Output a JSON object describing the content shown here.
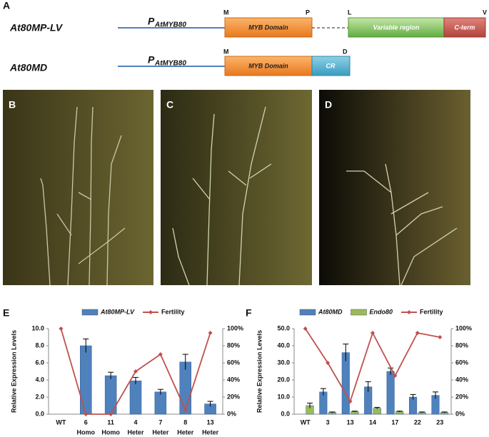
{
  "figure": {
    "panel_labels": [
      "A",
      "B",
      "C",
      "D",
      "E",
      "F"
    ],
    "constructs": [
      {
        "name": "At80MP-LV",
        "promoter": "P",
        "promoter_sub": "AtMYB80",
        "markers": [
          "M",
          "P",
          "L",
          "V"
        ],
        "domains": [
          "MYB Domain",
          "Variable region",
          "C-term"
        ]
      },
      {
        "name": "At80MD",
        "promoter": "P",
        "promoter_sub": "AtMYB80",
        "markers": [
          "M",
          "D"
        ],
        "domains": [
          "MYB Domain",
          "CR"
        ]
      }
    ]
  },
  "chart_data": [
    {
      "type": "bar_line",
      "y_label": "Relative Expression Levels",
      "categories": [
        "WT",
        "6",
        "11",
        "4",
        "7",
        "8",
        "13"
      ],
      "genotypes": [
        null,
        "Homo",
        "Homo",
        "Heter",
        "Heter",
        "Heter",
        "Heter"
      ],
      "series": [
        {
          "name": "At80MP-LV",
          "color": "#4f81bd",
          "values": [
            null,
            8.0,
            4.5,
            3.9,
            2.6,
            6.1,
            1.2
          ],
          "errors": [
            null,
            0.8,
            0.4,
            0.4,
            0.3,
            0.9,
            0.3
          ]
        },
        {
          "name": "Fertility",
          "color": "#c0504d",
          "axis": "y2",
          "values": [
            100,
            0,
            0,
            50,
            70,
            5,
            95
          ]
        }
      ],
      "ylim": [
        0,
        10
      ],
      "yticks": [
        {
          "value": 0,
          "label": "0.0"
        },
        {
          "value": 2,
          "label": "2.0"
        },
        {
          "value": 4,
          "label": "4.0"
        },
        {
          "value": 6,
          "label": "6.0"
        },
        {
          "value": 8,
          "label": "8.0"
        },
        {
          "value": 10,
          "label": "10.0"
        }
      ],
      "y2lim": [
        0,
        100
      ],
      "y2ticks": [
        {
          "value": 0,
          "label": "0%"
        },
        {
          "value": 20,
          "label": "20%"
        },
        {
          "value": 40,
          "label": "40%"
        },
        {
          "value": 60,
          "label": "60%"
        },
        {
          "value": 80,
          "label": "80%"
        },
        {
          "value": 100,
          "label": "100%"
        }
      ]
    },
    {
      "type": "bar_line",
      "y_label": "Relative Expression Levels",
      "categories": [
        "WT",
        "3",
        "13",
        "14",
        "17",
        "22",
        "23"
      ],
      "series": [
        {
          "name": "At80MD",
          "color": "#4f81bd",
          "values": [
            null,
            13,
            36,
            16,
            25,
            10,
            11
          ],
          "errors": [
            null,
            2,
            5,
            3,
            2,
            1.5,
            2
          ]
        },
        {
          "name": "Endo80",
          "color": "#9bbb59",
          "values": [
            5,
            1,
            1.5,
            3.5,
            1.5,
            1,
            1
          ],
          "errors": [
            1.5,
            0.3,
            0.3,
            0.5,
            0.3,
            0.3,
            0.3
          ]
        },
        {
          "name": "Fertility",
          "color": "#c0504d",
          "axis": "y2",
          "values": [
            100,
            60,
            15,
            95,
            45,
            95,
            90
          ]
        }
      ],
      "ylim": [
        0,
        50
      ],
      "yticks": [
        {
          "value": 0,
          "label": "0.0"
        },
        {
          "value": 10,
          "label": "10.0"
        },
        {
          "value": 20,
          "label": "20.0"
        },
        {
          "value": 30,
          "label": "30.0"
        },
        {
          "value": 40,
          "label": "40.0"
        },
        {
          "value": 50,
          "label": "50.0"
        }
      ],
      "y2lim": [
        0,
        100
      ],
      "y2ticks": [
        {
          "value": 0,
          "label": "0%"
        },
        {
          "value": 20,
          "label": "20%"
        },
        {
          "value": 40,
          "label": "40%"
        },
        {
          "value": 60,
          "label": "60%"
        },
        {
          "value": 80,
          "label": "80%"
        },
        {
          "value": 100,
          "label": "100%"
        }
      ]
    }
  ]
}
